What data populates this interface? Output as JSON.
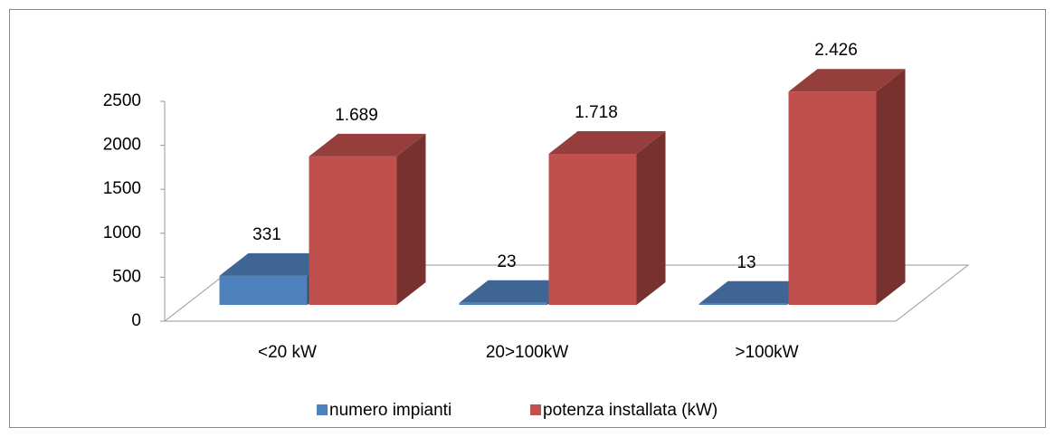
{
  "chart_data": {
    "type": "bar",
    "categories": [
      "<20 kW",
      "20>100kW",
      ">100kW"
    ],
    "series": [
      {
        "name": "numero impianti",
        "color": "#4f81bd",
        "values": [
          331,
          23,
          13
        ]
      },
      {
        "name": "potenza installata (kW)",
        "color": "#c0504d",
        "values": [
          1689,
          1718,
          2426
        ],
        "value_labels": [
          "1.689",
          "1.718",
          "2.426"
        ]
      }
    ],
    "ylim": [
      0,
      2500
    ],
    "yticks": [
      0,
      500,
      1000,
      1500,
      2000,
      2500
    ],
    "legend": "bottom"
  }
}
